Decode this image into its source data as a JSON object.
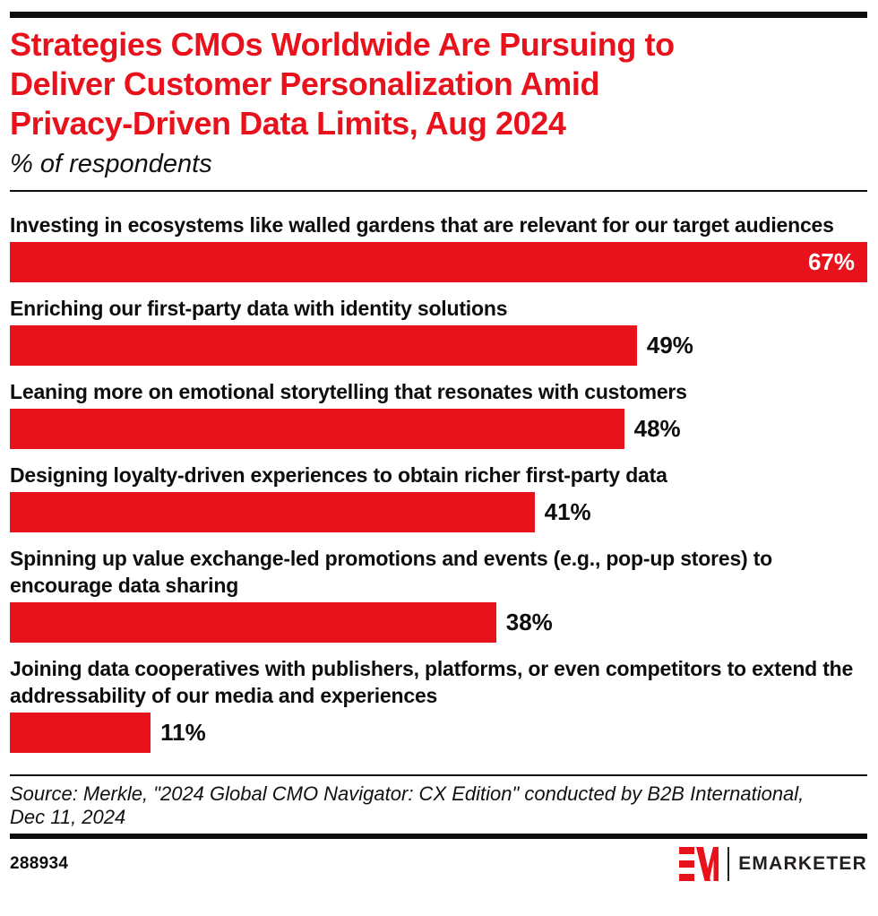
{
  "colors": {
    "brand_red": "#e8121c",
    "text_black": "#0d0d0d",
    "logo_dark": "#231f20",
    "background": "#ffffff"
  },
  "header": {
    "title": "Strategies CMOs Worldwide Are Pursuing to Deliver Customer Personalization Amid Privacy-Driven Data Limits, Aug 2024",
    "title_lines": [
      "Strategies CMOs Worldwide Are Pursuing to",
      "Deliver Customer Personalization Amid",
      "Privacy-Driven Data Limits, Aug 2024"
    ],
    "subtitle": "% of respondents"
  },
  "chart_data": {
    "type": "bar",
    "orientation": "horizontal",
    "title": "Strategies CMOs Worldwide Are Pursuing to Deliver Customer Personalization Amid Privacy-Driven Data Limits, Aug 2024",
    "subtitle": "% of respondents",
    "unit": "%",
    "scale_max": 67,
    "grid": false,
    "bar_color": "#e8121c",
    "categories": [
      "Investing in ecosystems like walled gardens that are relevant for our target audiences",
      "Enriching our first-party data with identity solutions",
      "Leaning more on emotional storytelling that resonates with customers",
      "Designing loyalty-driven experiences to obtain richer first-party data",
      "Spinning up value exchange-led promotions and events (e.g., pop-up stores) to encourage data sharing",
      "Joining data cooperatives with publishers, platforms, or even competitors to extend the addressability of our media and experiences"
    ],
    "values": [
      67,
      49,
      48,
      41,
      38,
      11
    ],
    "value_labels": [
      "67%",
      "49%",
      "48%",
      "41%",
      "38%",
      "11%"
    ]
  },
  "footer": {
    "source_lines": [
      "Source: Merkle, \"2024 Global CMO Navigator: CX Edition\" conducted by B2B International,",
      "Dec 11, 2024"
    ],
    "chart_id": "288934",
    "brand": "EMARKETER"
  }
}
